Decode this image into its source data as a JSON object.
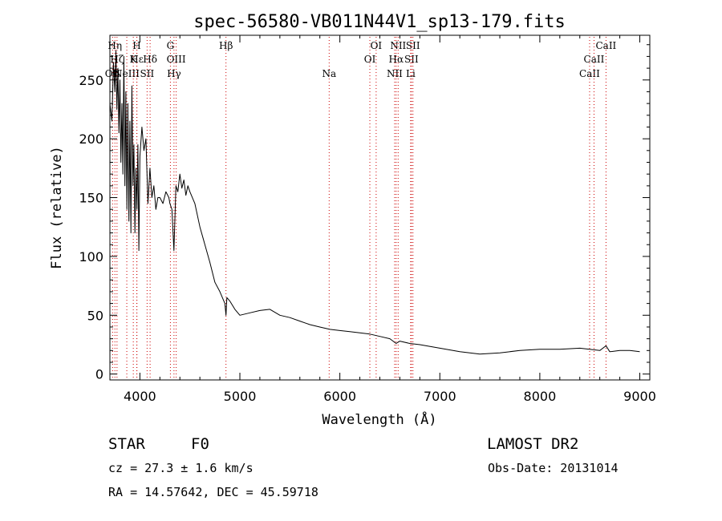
{
  "chart_data": {
    "type": "line",
    "title": "spec-56580-VB011N44V1_sp13-179.fits",
    "xlabel": "Wavelength (Å)",
    "ylabel": "Flux (relative)",
    "xlim": [
      3700,
      9100
    ],
    "ylim": [
      -5,
      288
    ],
    "xticks": [
      4000,
      5000,
      6000,
      7000,
      8000,
      9000
    ],
    "yticks": [
      0,
      50,
      100,
      150,
      200,
      250
    ],
    "grid": false,
    "line_color": "#000000",
    "marker_color": "#cc0000",
    "series": [
      {
        "x": [
          3700,
          3720,
          3735,
          3750,
          3760,
          3770,
          3780,
          3790,
          3800,
          3810,
          3820,
          3830,
          3840,
          3850,
          3860,
          3870,
          3880,
          3890,
          3900,
          3910,
          3920,
          3930,
          3940,
          3950,
          3960,
          3970,
          3980,
          3990,
          4000,
          4020,
          4040,
          4060,
          4080,
          4100,
          4120,
          4140,
          4160,
          4180,
          4200,
          4230,
          4260,
          4290,
          4300,
          4320,
          4340,
          4360,
          4380,
          4400,
          4420,
          4440,
          4460,
          4480,
          4500,
          4550,
          4600,
          4650,
          4700,
          4750,
          4800,
          4850,
          4861,
          4870,
          4900,
          4950,
          5000,
          5100,
          5200,
          5300,
          5400,
          5500,
          5600,
          5700,
          5800,
          5900,
          6000,
          6100,
          6200,
          6300,
          6400,
          6500,
          6563,
          6600,
          6700,
          6800,
          7000,
          7200,
          7400,
          7600,
          7800,
          8000,
          8200,
          8400,
          8600,
          8662,
          8700,
          8800,
          8900,
          9000
        ],
        "values": [
          230,
          215,
          265,
          240,
          275,
          225,
          260,
          205,
          250,
          180,
          230,
          170,
          270,
          160,
          240,
          140,
          230,
          130,
          215,
          120,
          245,
          160,
          195,
          120,
          175,
          140,
          195,
          105,
          185,
          210,
          190,
          200,
          145,
          175,
          150,
          160,
          140,
          150,
          150,
          145,
          155,
          150,
          145,
          140,
          105,
          160,
          155,
          170,
          158,
          165,
          152,
          160,
          155,
          145,
          125,
          110,
          95,
          78,
          70,
          60,
          50,
          65,
          62,
          55,
          50,
          52,
          54,
          55,
          50,
          48,
          45,
          42,
          40,
          38,
          37,
          36,
          35,
          34,
          32,
          30,
          26,
          28,
          26,
          25,
          22,
          19,
          17,
          18,
          20,
          21,
          21,
          22,
          20,
          24,
          19,
          20,
          20,
          19
        ]
      }
    ],
    "lines": [
      {
        "label": "OII",
        "wavelength": 3727,
        "row": 3
      },
      {
        "label": "Hη",
        "wavelength": 3750,
        "row": 1
      },
      {
        "label": "Hζ",
        "wavelength": 3771,
        "row": 2
      },
      {
        "label": "NeIII",
        "wavelength": 3869,
        "row": 3
      },
      {
        "label": "K",
        "wavelength": 3934,
        "row": 2
      },
      {
        "label": "H",
        "wavelength": 3969,
        "row": 1
      },
      {
        "label": "Hε",
        "wavelength": 3970,
        "row": 2
      },
      {
        "label": "SII",
        "wavelength": 4072,
        "row": 3
      },
      {
        "label": "Hδ",
        "wavelength": 4102,
        "row": 2
      },
      {
        "label": "G",
        "wavelength": 4305,
        "row": 1
      },
      {
        "label": "Hγ",
        "wavelength": 4341,
        "row": 3
      },
      {
        "label": "OIII",
        "wavelength": 4363,
        "row": 2
      },
      {
        "label": "Hβ",
        "wavelength": 4861,
        "row": 1
      },
      {
        "label": "Na",
        "wavelength": 5893,
        "row": 3
      },
      {
        "label": "OI",
        "wavelength": 6300,
        "row": 2
      },
      {
        "label": "OI",
        "wavelength": 6363,
        "row": 1
      },
      {
        "label": "NII",
        "wavelength": 6548,
        "row": 3
      },
      {
        "label": "NII",
        "wavelength": 6583,
        "row": 1
      },
      {
        "label": "Hα",
        "wavelength": 6563,
        "row": 2
      },
      {
        "label": "SII",
        "wavelength": 6716,
        "row": 2
      },
      {
        "label": "SII",
        "wavelength": 6731,
        "row": 1
      },
      {
        "label": "Li",
        "wavelength": 6708,
        "row": 3
      },
      {
        "label": "CaII",
        "wavelength": 8498,
        "row": 3
      },
      {
        "label": "CaII",
        "wavelength": 8542,
        "row": 2
      },
      {
        "label": "CaII",
        "wavelength": 8662,
        "row": 1
      }
    ]
  },
  "info": {
    "class": "STAR",
    "subclass": "F0",
    "release": "LAMOST DR2",
    "cz": "cz = 27.3 ± 1.6 km/s",
    "obs_date": "Obs-Date: 20131014",
    "radec": "RA =  14.57642, DEC =  45.59718"
  }
}
